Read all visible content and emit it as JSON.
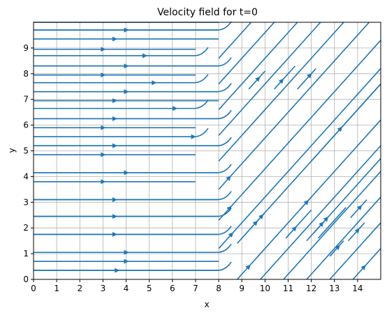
{
  "chart_data": {
    "type": "streamplot",
    "title": "Velocity field for t=0",
    "xlabel": "x",
    "ylabel": "y",
    "xlim": [
      0,
      15
    ],
    "ylim": [
      0,
      10
    ],
    "grid": true,
    "line_color": "#1f77b4",
    "xticks": [
      "0",
      "1",
      "2",
      "3",
      "4",
      "5",
      "6",
      "7",
      "8",
      "9",
      "10",
      "11",
      "12",
      "13",
      "14"
    ],
    "yticks": [
      "0",
      "1",
      "2",
      "3",
      "4",
      "5",
      "6",
      "7",
      "8",
      "9"
    ],
    "xtick_values": [
      0,
      1,
      2,
      3,
      4,
      5,
      6,
      7,
      8,
      9,
      10,
      11,
      12,
      13,
      14
    ],
    "ytick_values": [
      0,
      1,
      2,
      3,
      4,
      5,
      6,
      7,
      8,
      9
    ],
    "horizontal_streams": [
      {
        "y": 0.35,
        "x_end": 8.0,
        "arrow_x": 3.6
      },
      {
        "y": 0.7,
        "x_end": 8.0,
        "arrow_x": 4.0
      },
      {
        "y": 1.05,
        "x_end": 8.0,
        "arrow_x": 4.0
      },
      {
        "y": 1.75,
        "x_end": 8.0,
        "arrow_x": 3.5
      },
      {
        "y": 2.45,
        "x_end": 8.0,
        "arrow_x": 3.5
      },
      {
        "y": 3.1,
        "x_end": 8.0,
        "arrow_x": 3.5
      },
      {
        "y": 3.8,
        "x_end": 7.0,
        "arrow_x": 3.0
      },
      {
        "y": 4.15,
        "x_end": 8.0,
        "arrow_x": 4.0
      },
      {
        "y": 4.85,
        "x_end": 7.0,
        "arrow_x": 3.0
      },
      {
        "y": 5.2,
        "x_end": 8.0,
        "arrow_x": 3.5
      },
      {
        "y": 5.9,
        "x_end": 7.0,
        "arrow_x": 3.0
      },
      {
        "y": 6.25,
        "x_end": 8.0,
        "arrow_x": 3.5
      },
      {
        "y": 6.95,
        "x_end": 8.0,
        "arrow_x": 3.5
      },
      {
        "y": 7.3,
        "x_end": 8.0,
        "arrow_x": 4.0
      },
      {
        "y": 7.95,
        "x_end": 7.0,
        "arrow_x": 3.0
      },
      {
        "y": 8.3,
        "x_end": 8.0,
        "arrow_x": 4.0
      },
      {
        "y": 8.95,
        "x_end": 7.0,
        "arrow_x": 3.0
      },
      {
        "y": 9.35,
        "x_end": 8.0,
        "arrow_x": 3.5
      },
      {
        "y": 9.7,
        "x_end": 8.0,
        "arrow_x": 4.0
      },
      {
        "y": 10.0,
        "x_end": 8.0,
        "arrow_x": 3.8
      }
    ],
    "bend_streams": [
      {
        "y": 0.35,
        "x_end": 8.0
      },
      {
        "y": 1.05,
        "x_end": 8.0
      },
      {
        "y": 1.75,
        "x_end": 8.0
      },
      {
        "y": 2.45,
        "x_end": 8.0
      },
      {
        "y": 3.1,
        "x_end": 8.0
      },
      {
        "y": 4.15,
        "x_end": 8.0
      },
      {
        "y": 5.2,
        "x_end": 8.0
      },
      {
        "y": 5.55,
        "x_end": 7.0,
        "arrow_x": 6.9
      },
      {
        "y": 6.25,
        "x_end": 8.0
      },
      {
        "y": 6.65,
        "x_end": 7.0,
        "arrow_x": 6.1
      },
      {
        "y": 7.3,
        "x_end": 8.0
      },
      {
        "y": 7.65,
        "x_end": 7.0,
        "arrow_x": 5.2
      },
      {
        "y": 8.3,
        "x_end": 8.0
      },
      {
        "y": 8.7,
        "x_end": 7.0,
        "arrow_x": 4.8
      },
      {
        "y": 9.7,
        "x_end": 8.0
      }
    ],
    "diagonal_streams": [
      {
        "x0": 8.8,
        "y0": 0.0,
        "x1": 15.0,
        "y1": 6.2,
        "arrow_at": 0.07
      },
      {
        "x0": 9.8,
        "y0": 0.0,
        "x1": 15.0,
        "y1": 5.2
      },
      {
        "x0": 10.8,
        "y0": 0.0,
        "x1": 15.0,
        "y1": 4.2
      },
      {
        "x0": 11.8,
        "y0": 0.0,
        "x1": 15.0,
        "y1": 3.2
      },
      {
        "x0": 12.8,
        "y0": 0.0,
        "x1": 15.0,
        "y1": 2.2
      },
      {
        "x0": 13.8,
        "y0": 0.0,
        "x1": 15.0,
        "y1": 1.2,
        "arrow_at": 0.35
      },
      {
        "x0": 8.0,
        "y0": 1.2,
        "x1": 15.0,
        "y1": 8.2,
        "arrow_at": 0.07
      },
      {
        "x0": 8.0,
        "y0": 2.3,
        "x1": 15.0,
        "y1": 9.3,
        "arrow_at": 0.06
      },
      {
        "x0": 8.0,
        "y0": 3.5,
        "x1": 14.5,
        "y1": 10.0,
        "arrow_at": 0.06
      },
      {
        "x0": 8.0,
        "y0": 4.6,
        "x1": 13.4,
        "y1": 10.0
      },
      {
        "x0": 8.0,
        "y0": 5.6,
        "x1": 12.4,
        "y1": 10.0
      },
      {
        "x0": 8.0,
        "y0": 6.6,
        "x1": 11.4,
        "y1": 10.0
      },
      {
        "x0": 8.0,
        "y0": 7.6,
        "x1": 10.4,
        "y1": 10.0
      },
      {
        "x0": 8.0,
        "y0": 8.6,
        "x1": 9.4,
        "y1": 10.0
      },
      {
        "x0": 8.8,
        "y0": 1.4,
        "x1": 15.0,
        "y1": 7.6,
        "arrow_at": 0.12
      },
      {
        "x0": 12.0,
        "y0": 4.6,
        "x1": 15.0,
        "y1": 7.6,
        "arrow_at": 0.4
      },
      {
        "x0": 11.8,
        "y0": 1.5,
        "x1": 15.0,
        "y1": 4.7,
        "arrow_at": 0.25
      },
      {
        "x0": 10.9,
        "y0": 1.6,
        "x1": 12.0,
        "y1": 2.7,
        "arrow_at": 0.3
      },
      {
        "x0": 9.3,
        "y0": 7.4,
        "x1": 10.0,
        "y1": 8.1,
        "arrow_at": 0.5
      },
      {
        "x0": 10.4,
        "y0": 7.4,
        "x1": 11.3,
        "y1": 8.3,
        "arrow_at": 0.3
      },
      {
        "x0": 11.4,
        "y0": 7.4,
        "x1": 12.2,
        "y1": 8.2,
        "arrow_at": 0.6
      },
      {
        "x0": 12.3,
        "y0": 1.6,
        "x1": 13.5,
        "y1": 2.8
      },
      {
        "x0": 12.1,
        "y0": 1.8,
        "x1": 12.7,
        "y1": 2.4,
        "arrow_at": 0.5
      },
      {
        "x0": 9.6,
        "y0": 2.2,
        "x1": 10.0,
        "y1": 2.6,
        "arrow_at": 0.5
      },
      {
        "x0": 11.5,
        "y0": 2.7,
        "x1": 12.0,
        "y1": 3.2,
        "arrow_at": 0.5
      },
      {
        "x0": 13.7,
        "y0": 2.4,
        "x1": 14.4,
        "y1": 3.1,
        "arrow_at": 0.5
      },
      {
        "x0": 13.6,
        "y0": 1.5,
        "x1": 14.3,
        "y1": 2.2,
        "arrow_at": 0.5
      },
      {
        "x0": 12.8,
        "y0": 0.9,
        "x1": 13.4,
        "y1": 1.5,
        "arrow_at": 0.5
      }
    ]
  }
}
